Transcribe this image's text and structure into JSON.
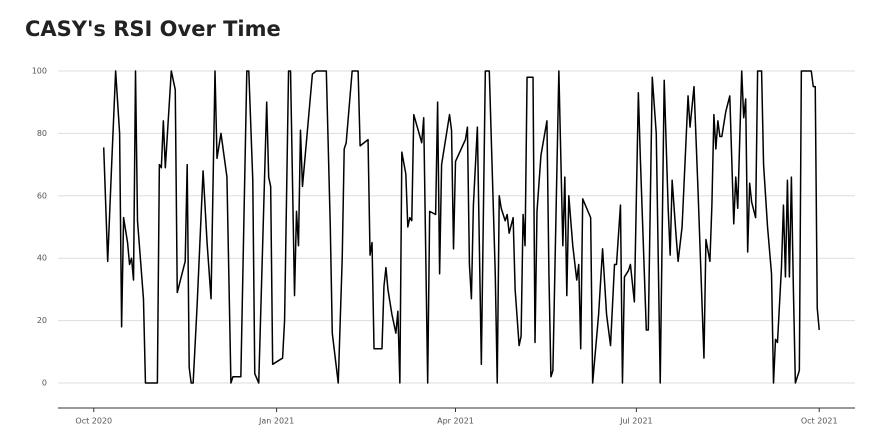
{
  "chart_data": {
    "type": "line",
    "title": "CASY's RSI Over Time",
    "color": "#000000",
    "grid": true,
    "ylim": [
      -8,
      103
    ],
    "yticks": [
      0,
      20,
      40,
      60,
      80,
      100
    ],
    "xlim": [
      "2020-09-13",
      "2021-10-19"
    ],
    "xticks": [
      {
        "value": "2020-10-01",
        "label": "Oct 2020"
      },
      {
        "value": "2021-01-01",
        "label": "Jan 2021"
      },
      {
        "value": "2021-04-01",
        "label": "Apr 2021"
      },
      {
        "value": "2021-07-01",
        "label": "Jul 2021"
      },
      {
        "value": "2021-10-01",
        "label": "Oct 2021"
      }
    ],
    "x": [
      "2020-10-06",
      "2020-10-08",
      "2020-10-10",
      "2020-10-12",
      "2020-10-14",
      "2020-10-15",
      "2020-10-16",
      "2020-10-18",
      "2020-10-19",
      "2020-10-20",
      "2020-10-21",
      "2020-10-22",
      "2020-10-23",
      "2020-10-26",
      "2020-10-27",
      "2020-11-02",
      "2020-11-03",
      "2020-11-04",
      "2020-11-05",
      "2020-11-06",
      "2020-11-09",
      "2020-11-11",
      "2020-11-12",
      "2020-11-14",
      "2020-11-16",
      "2020-11-17",
      "2020-11-18",
      "2020-11-19",
      "2020-11-20",
      "2020-11-22",
      "2020-11-25",
      "2020-11-27",
      "2020-11-29",
      "2020-12-01",
      "2020-12-02",
      "2020-12-04",
      "2020-12-07",
      "2020-12-09",
      "2020-12-10",
      "2020-12-14",
      "2020-12-17",
      "2020-12-18",
      "2020-12-20",
      "2020-12-21",
      "2020-12-23",
      "2020-12-25",
      "2020-12-27",
      "2020-12-28",
      "2020-12-29",
      "2020-12-30",
      "2021-01-04",
      "2021-01-05",
      "2021-01-07",
      "2021-01-08",
      "2021-01-10",
      "2021-01-11",
      "2021-01-12",
      "2021-01-13",
      "2021-01-14",
      "2021-01-19",
      "2021-01-21",
      "2021-01-26",
      "2021-01-28",
      "2021-01-29",
      "2021-02-01",
      "2021-02-03",
      "2021-02-04",
      "2021-02-05",
      "2021-02-08",
      "2021-02-11",
      "2021-02-12",
      "2021-02-16",
      "2021-02-17",
      "2021-02-18",
      "2021-02-19",
      "2021-02-21",
      "2021-02-23",
      "2021-02-24",
      "2021-02-25",
      "2021-02-26",
      "2021-02-28",
      "2021-03-02",
      "2021-03-03",
      "2021-03-04",
      "2021-03-05",
      "2021-03-07",
      "2021-03-08",
      "2021-03-09",
      "2021-03-10",
      "2021-03-11",
      "2021-03-15",
      "2021-03-16",
      "2021-03-18",
      "2021-03-19",
      "2021-03-22",
      "2021-03-23",
      "2021-03-24",
      "2021-03-25",
      "2021-03-29",
      "2021-03-30",
      "2021-03-31",
      "2021-04-01",
      "2021-04-06",
      "2021-04-07",
      "2021-04-08",
      "2021-04-09",
      "2021-04-10",
      "2021-04-12",
      "2021-04-14",
      "2021-04-16",
      "2021-04-18",
      "2021-04-21",
      "2021-04-22",
      "2021-04-23",
      "2021-04-24",
      "2021-04-26",
      "2021-04-27",
      "2021-04-28",
      "2021-04-30",
      "2021-05-01",
      "2021-05-03",
      "2021-05-04",
      "2021-05-05",
      "2021-05-06",
      "2021-05-07",
      "2021-05-10",
      "2021-05-11",
      "2021-05-12",
      "2021-05-14",
      "2021-05-17",
      "2021-05-18",
      "2021-05-19",
      "2021-05-20",
      "2021-05-23",
      "2021-05-25",
      "2021-05-26",
      "2021-05-27",
      "2021-05-28",
      "2021-05-30",
      "2021-06-01",
      "2021-06-02",
      "2021-06-03",
      "2021-06-04",
      "2021-06-08",
      "2021-06-09",
      "2021-06-12",
      "2021-06-14",
      "2021-06-16",
      "2021-06-18",
      "2021-06-20",
      "2021-06-21",
      "2021-06-23",
      "2021-06-24",
      "2021-06-25",
      "2021-06-27",
      "2021-06-28",
      "2021-06-30",
      "2021-07-02",
      "2021-07-03",
      "2021-07-06",
      "2021-07-07",
      "2021-07-09",
      "2021-07-11",
      "2021-07-13",
      "2021-07-15",
      "2021-07-17",
      "2021-07-18",
      "2021-07-19",
      "2021-07-21",
      "2021-07-22",
      "2021-07-24",
      "2021-07-27",
      "2021-07-28",
      "2021-07-30",
      "2021-08-01",
      "2021-08-04",
      "2021-08-05",
      "2021-08-07",
      "2021-08-08",
      "2021-08-09",
      "2021-08-10",
      "2021-08-11",
      "2021-08-12",
      "2021-08-13",
      "2021-08-15",
      "2021-08-17",
      "2021-08-19",
      "2021-08-20",
      "2021-08-21",
      "2021-08-23",
      "2021-08-24",
      "2021-08-25",
      "2021-08-26",
      "2021-08-27",
      "2021-08-28",
      "2021-08-30",
      "2021-08-31",
      "2021-09-02",
      "2021-09-03",
      "2021-09-05",
      "2021-09-07",
      "2021-09-08",
      "2021-09-09",
      "2021-09-10",
      "2021-09-12",
      "2021-09-13",
      "2021-09-14",
      "2021-09-15",
      "2021-09-16",
      "2021-09-17",
      "2021-09-18",
      "2021-09-19",
      "2021-09-21",
      "2021-09-22",
      "2021-09-27",
      "2021-09-28",
      "2021-09-29",
      "2021-09-30",
      "2021-10-01"
    ],
    "values": [
      75.5,
      39,
      70,
      100,
      80,
      18,
      53,
      45,
      38,
      40,
      33,
      100,
      52,
      27,
      0,
      0,
      70,
      69,
      84,
      69,
      100,
      94,
      29,
      34,
      39,
      70,
      5,
      0,
      0,
      25,
      68,
      45,
      27,
      100,
      72,
      80,
      66,
      0,
      2,
      2,
      100,
      100,
      65,
      3,
      0,
      45,
      90,
      66,
      63,
      6,
      8,
      20,
      100,
      100,
      28,
      55,
      44,
      81,
      63,
      99,
      100,
      100,
      50,
      16,
      0,
      40,
      75,
      77,
      100,
      100,
      76,
      78,
      41,
      45,
      11,
      11,
      11,
      31,
      37,
      30,
      22,
      16,
      23,
      0,
      74,
      67,
      50,
      53,
      52,
      86,
      77,
      85,
      0,
      55,
      54,
      90,
      35,
      70,
      86,
      81,
      43,
      71,
      78,
      82,
      38,
      27,
      57,
      82,
      6,
      100,
      100,
      35,
      0,
      60,
      56,
      52,
      54,
      48,
      53,
      30,
      12,
      15,
      54,
      44,
      98,
      98,
      13,
      55,
      73,
      84,
      35,
      2,
      4,
      100,
      44,
      66,
      28,
      60,
      44,
      33,
      38,
      11,
      59,
      53,
      0,
      22,
      43,
      22,
      12,
      38,
      38,
      57,
      0,
      34,
      36,
      38,
      26,
      93,
      72,
      17,
      17,
      98,
      80,
      0,
      97,
      56,
      41,
      65,
      47,
      39,
      50,
      92,
      82,
      95,
      62,
      8,
      46,
      39,
      57,
      86,
      75,
      84,
      79,
      79,
      87,
      92,
      51,
      66,
      56,
      100,
      85,
      91,
      42,
      64,
      58,
      53,
      100,
      100,
      70,
      50,
      35,
      0,
      14,
      13,
      37,
      57,
      34,
      65,
      34,
      66,
      30,
      0,
      4,
      100,
      100,
      95,
      95,
      24,
      17
    ]
  }
}
